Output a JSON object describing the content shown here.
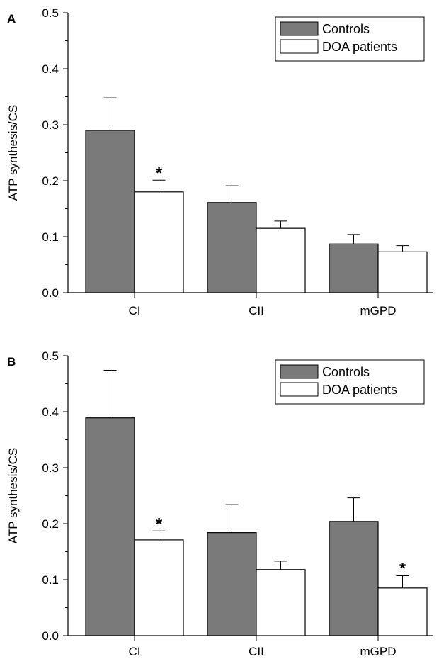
{
  "colors": {
    "controls": "#7a7a7a",
    "patients": "#ffffff",
    "stroke": "#000000"
  },
  "chart_data": [
    {
      "panel": "A",
      "type": "bar",
      "categories": [
        "CI",
        "CII",
        "mGPD"
      ],
      "ylabel": "ATP synthesis/CS",
      "ylim": [
        0,
        0.5
      ],
      "yticks": [
        "0.0",
        "0.1",
        "0.2",
        "0.3",
        "0.4",
        "0.5"
      ],
      "legend": "top-right",
      "series": [
        {
          "name": "Controls",
          "values": [
            0.29,
            0.161,
            0.087
          ],
          "errors": [
            0.058,
            0.03,
            0.017
          ]
        },
        {
          "name": "DOA patients",
          "values": [
            0.18,
            0.115,
            0.073
          ],
          "errors": [
            0.021,
            0.013,
            0.011
          ]
        }
      ],
      "annotations": [
        {
          "text": "*",
          "series": 1,
          "category": "CI"
        }
      ]
    },
    {
      "panel": "B",
      "type": "bar",
      "categories": [
        "CI",
        "CII",
        "mGPD"
      ],
      "ylabel": "ATP synthesis/CS",
      "ylim": [
        0,
        0.5
      ],
      "yticks": [
        "0.0",
        "0.1",
        "0.2",
        "0.3",
        "0.4",
        "0.5"
      ],
      "legend": "top-right",
      "series": [
        {
          "name": "Controls",
          "values": [
            0.389,
            0.184,
            0.204
          ],
          "errors": [
            0.085,
            0.05,
            0.042
          ]
        },
        {
          "name": "DOA patients",
          "values": [
            0.171,
            0.118,
            0.085
          ],
          "errors": [
            0.016,
            0.015,
            0.022
          ]
        }
      ],
      "annotations": [
        {
          "text": "*",
          "series": 1,
          "category": "CI"
        },
        {
          "text": "*",
          "series": 1,
          "category": "mGPD"
        }
      ]
    }
  ]
}
